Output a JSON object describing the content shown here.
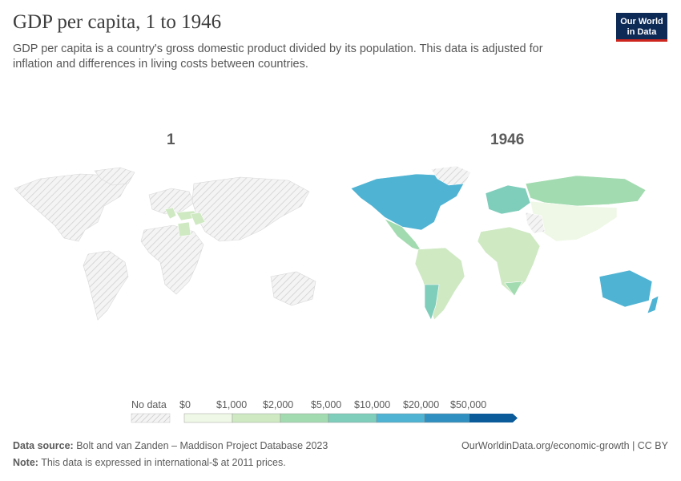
{
  "header": {
    "title": "GDP per capita, 1 to 1946",
    "subtitle": "GDP per capita is a country's gross domestic product divided by its population. This data is adjusted for inflation and differences in living costs between countries.",
    "logo_line1": "Our World",
    "logo_line2": "in Data"
  },
  "maps": [
    {
      "year_label": "1"
    },
    {
      "year_label": "1946"
    }
  ],
  "legend": {
    "no_data_label": "No data",
    "bins": [
      "$0",
      "$1,000",
      "$2,000",
      "$5,000",
      "$10,000",
      "$20,000",
      "$50,000"
    ],
    "colors": [
      "#eff8e6",
      "#cfe9c3",
      "#a3dbb0",
      "#7fcdbb",
      "#4fb3d3",
      "#2f8fc0",
      "#0b5a9a"
    ]
  },
  "footer": {
    "source_label": "Data source:",
    "source_text": "Bolt and van Zanden – Maddison Project Database 2023",
    "note_label": "Note:",
    "note_text": "This data is expressed in international-$ at 2011 prices.",
    "url_text": "OurWorldinData.org/economic-growth | CC BY"
  },
  "colors": {
    "no_data_fill": "#e8e8e8",
    "hatch_stroke": "#cfcfcf",
    "usa_canada": "#4fb3d3",
    "australia": "#4fb3d3",
    "latin_america": "#a3dbb0",
    "europe": "#7fcdbb",
    "russia": "#a3dbb0",
    "asia_africa": "#cfe9c3"
  }
}
